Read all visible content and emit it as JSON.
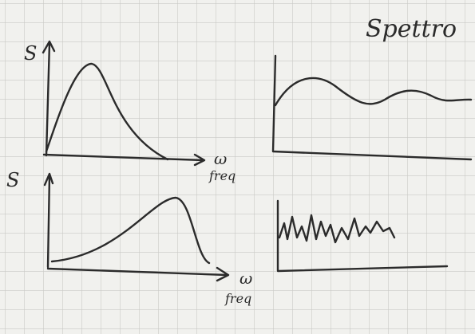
{
  "heading": "Spettro",
  "plots": [
    {
      "y_label": "S",
      "x_label": "ω",
      "x_sublabel": "freq"
    },
    {
      "y_label": "S",
      "x_label": "ω",
      "x_sublabel": "freq"
    }
  ]
}
